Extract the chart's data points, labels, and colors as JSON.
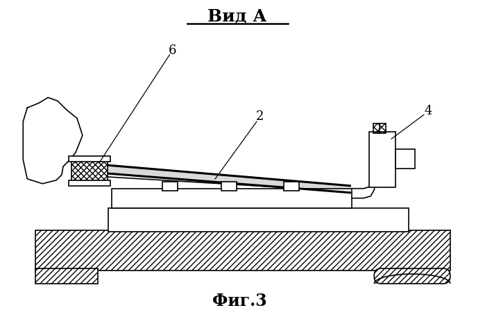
{
  "title": "Вид А",
  "fig_label": "Фиг.3",
  "label_6": "6",
  "label_2": "2",
  "label_4": "4",
  "bg_color": "#ffffff",
  "line_color": "#000000",
  "lw": 1.2,
  "lw_thick": 2.2
}
